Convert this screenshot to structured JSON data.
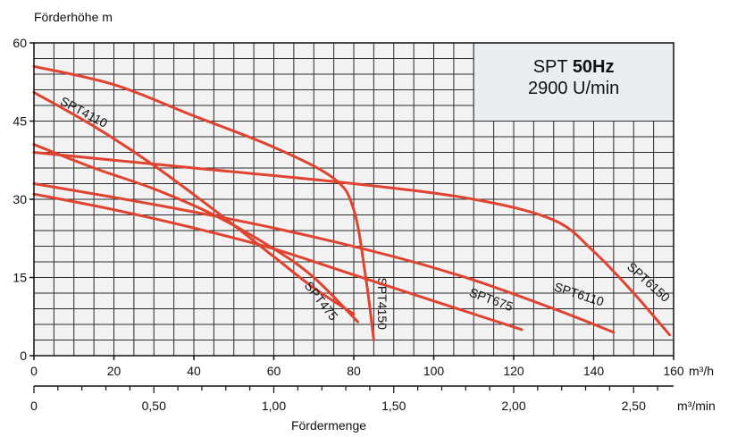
{
  "chart_data": {
    "type": "line",
    "ylabel": "Förderhöhe m",
    "xlabel": "Fördermenge",
    "x_unit": "m³/h",
    "x2_unit": "m³/min",
    "xlim": [
      0,
      160
    ],
    "ylim": [
      0,
      60
    ],
    "x_ticks": [
      "0",
      "20",
      "40",
      "60",
      "80",
      "100",
      "120",
      "140",
      "160"
    ],
    "x2_ticks": [
      "0",
      "0,50",
      "1,00",
      "1,50",
      "2,00",
      "2,50"
    ],
    "y_ticks": [
      "0",
      "15",
      "30",
      "45",
      "60"
    ],
    "grid": true,
    "box": {
      "title_prefix": "SPT",
      "title_bold": "50Hz",
      "subtitle": "2900 U/min"
    },
    "series": [
      {
        "name": "SPT4110",
        "x": [
          0,
          15,
          30,
          45,
          60,
          70,
          80
        ],
        "y": [
          50.5,
          44,
          36.5,
          28,
          19,
          13,
          8
        ]
      },
      {
        "name": "SPT475",
        "x": [
          0,
          15,
          30,
          45,
          60,
          70,
          81
        ],
        "y": [
          40.5,
          36,
          32,
          27,
          20.5,
          15,
          6.5
        ]
      },
      {
        "name": "SPT4150",
        "x": [
          0,
          20,
          40,
          60,
          75,
          80,
          83,
          85
        ],
        "y": [
          55.5,
          52,
          46,
          40,
          34,
          28,
          15,
          3
        ]
      },
      {
        "name": "SPT675",
        "x": [
          0,
          20,
          40,
          60,
          80,
          100,
          122
        ],
        "y": [
          31,
          28,
          24.5,
          20.5,
          15.5,
          10.5,
          5
        ]
      },
      {
        "name": "SPT6110",
        "x": [
          0,
          30,
          60,
          90,
          110,
          130,
          145
        ],
        "y": [
          33,
          29,
          24.5,
          19,
          14.5,
          9,
          4.5
        ]
      },
      {
        "name": "SPT6150",
        "x": [
          0,
          40,
          80,
          110,
          130,
          140,
          150,
          159
        ],
        "y": [
          39,
          36,
          33,
          30,
          26,
          20,
          12,
          4
        ]
      }
    ]
  }
}
